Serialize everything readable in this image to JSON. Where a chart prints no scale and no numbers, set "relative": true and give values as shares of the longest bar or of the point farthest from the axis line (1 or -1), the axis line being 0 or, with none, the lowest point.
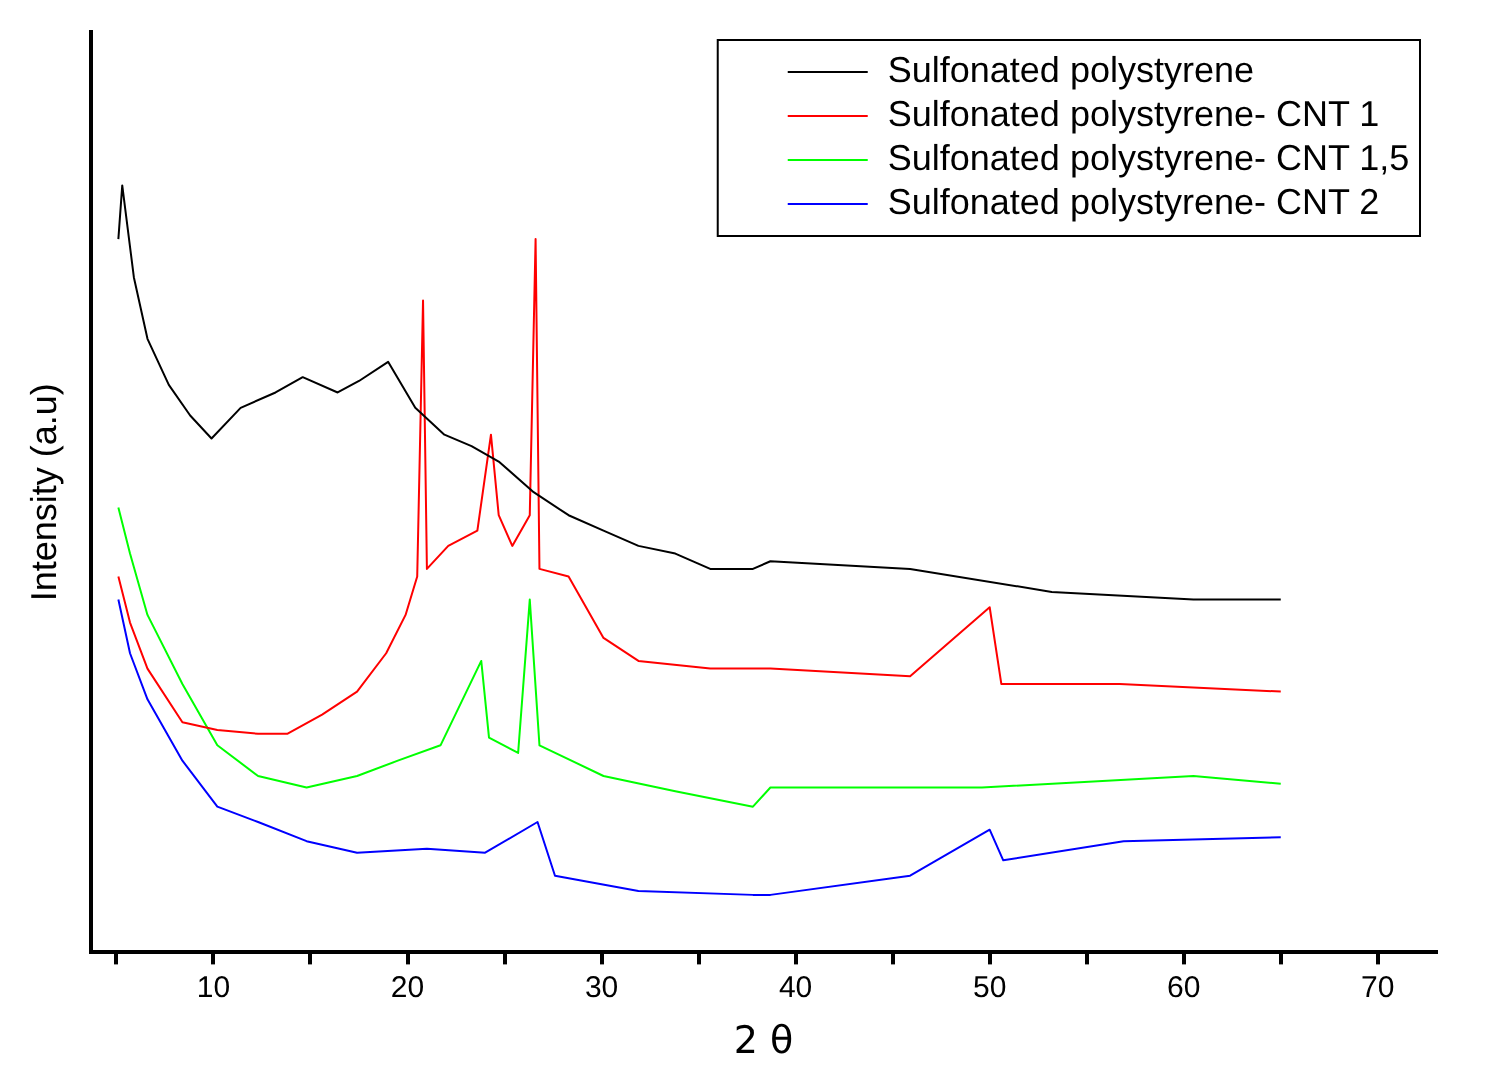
{
  "chart_data": {
    "type": "line",
    "xlabel": "2 θ",
    "ylabel": "Intensity (a.u)",
    "relative": true,
    "legend": "top right",
    "grid": false,
    "marker": "none",
    "line_style": "solid",
    "tick_labels": "x",
    "xlim": [
      3.7,
      73
    ],
    "xticks": [
      {
        "value": 5,
        "label": null
      },
      10,
      {
        "value": 15,
        "label": null
      },
      20,
      {
        "value": 25,
        "label": null
      },
      30,
      {
        "value": 35,
        "label": null
      },
      40,
      {
        "value": 45,
        "label": null
      },
      50,
      {
        "value": 55,
        "label": null
      },
      60,
      {
        "value": 65,
        "label": null
      },
      70
    ],
    "series": [
      {
        "name": "Sulfonated polystyrene",
        "color": "#000000",
        "x": [
          5.1,
          5.3,
          5.9,
          6.6,
          7.7,
          8.8,
          9.9,
          11.4,
          13.2,
          14.6,
          16.4,
          17.5,
          19,
          20.4,
          21.9,
          23.3,
          24.7,
          26.5,
          28.3,
          30.1,
          31.9,
          33.8,
          35.6,
          37.8,
          38.7,
          45.9,
          53.2,
          60.5,
          65
        ],
        "values": [
          0.93,
          1.0,
          0.88,
          0.8,
          0.74,
          0.7,
          0.67,
          0.71,
          0.73,
          0.75,
          0.73,
          0.745,
          0.77,
          0.71,
          0.675,
          0.66,
          0.64,
          0.6,
          0.57,
          0.55,
          0.53,
          0.52,
          0.5,
          0.5,
          0.51,
          0.5,
          0.47,
          0.46,
          0.46
        ]
      },
      {
        "name": "Sulfonated polystyrene- CNT 1",
        "color": "#ff0000",
        "x": [
          5.1,
          5.7,
          6.6,
          8.4,
          10.2,
          12.3,
          13.8,
          15.6,
          17.4,
          18.9,
          19.9,
          20.5,
          20.8,
          21,
          22.1,
          23.6,
          24.3,
          24.7,
          25.4,
          26.3,
          26.6,
          26.8,
          28.3,
          30.1,
          31.9,
          35.6,
          38.7,
          45.9,
          50,
          50.6,
          56.7,
          65
        ],
        "values": [
          0.49,
          0.43,
          0.37,
          0.3,
          0.29,
          0.285,
          0.285,
          0.31,
          0.34,
          0.39,
          0.44,
          0.49,
          0.85,
          0.5,
          0.53,
          0.55,
          0.675,
          0.57,
          0.53,
          0.57,
          0.93,
          0.5,
          0.49,
          0.41,
          0.38,
          0.37,
          0.37,
          0.36,
          0.45,
          0.35,
          0.35,
          0.34
        ]
      },
      {
        "name": "Sulfonated polystyrene- CNT 1,5",
        "color": "#00ff00",
        "x": [
          5.1,
          5.7,
          6.6,
          8.4,
          10.2,
          12.3,
          14.8,
          17.4,
          19.5,
          21.7,
          23.8,
          24.2,
          25.7,
          26.3,
          26.8,
          30.1,
          33.8,
          37.8,
          38.7,
          49.6,
          60.5,
          65
        ],
        "values": [
          0.58,
          0.52,
          0.44,
          0.35,
          0.27,
          0.23,
          0.215,
          0.23,
          0.25,
          0.27,
          0.38,
          0.28,
          0.26,
          0.46,
          0.27,
          0.23,
          0.21,
          0.19,
          0.215,
          0.215,
          0.23,
          0.22
        ]
      },
      {
        "name": "Sulfonated polystyrene- CNT 2",
        "color": "#0000ff",
        "x": [
          5.1,
          5.7,
          6.6,
          8.4,
          10.2,
          12.3,
          14.8,
          17.4,
          21,
          24,
          26.7,
          27.6,
          31.9,
          37.8,
          38.7,
          45.9,
          50,
          50.7,
          56.9,
          65
        ],
        "values": [
          0.46,
          0.39,
          0.33,
          0.25,
          0.19,
          0.17,
          0.145,
          0.13,
          0.135,
          0.13,
          0.17,
          0.1,
          0.08,
          0.075,
          0.075,
          0.1,
          0.16,
          0.12,
          0.145,
          0.15
        ]
      }
    ]
  }
}
